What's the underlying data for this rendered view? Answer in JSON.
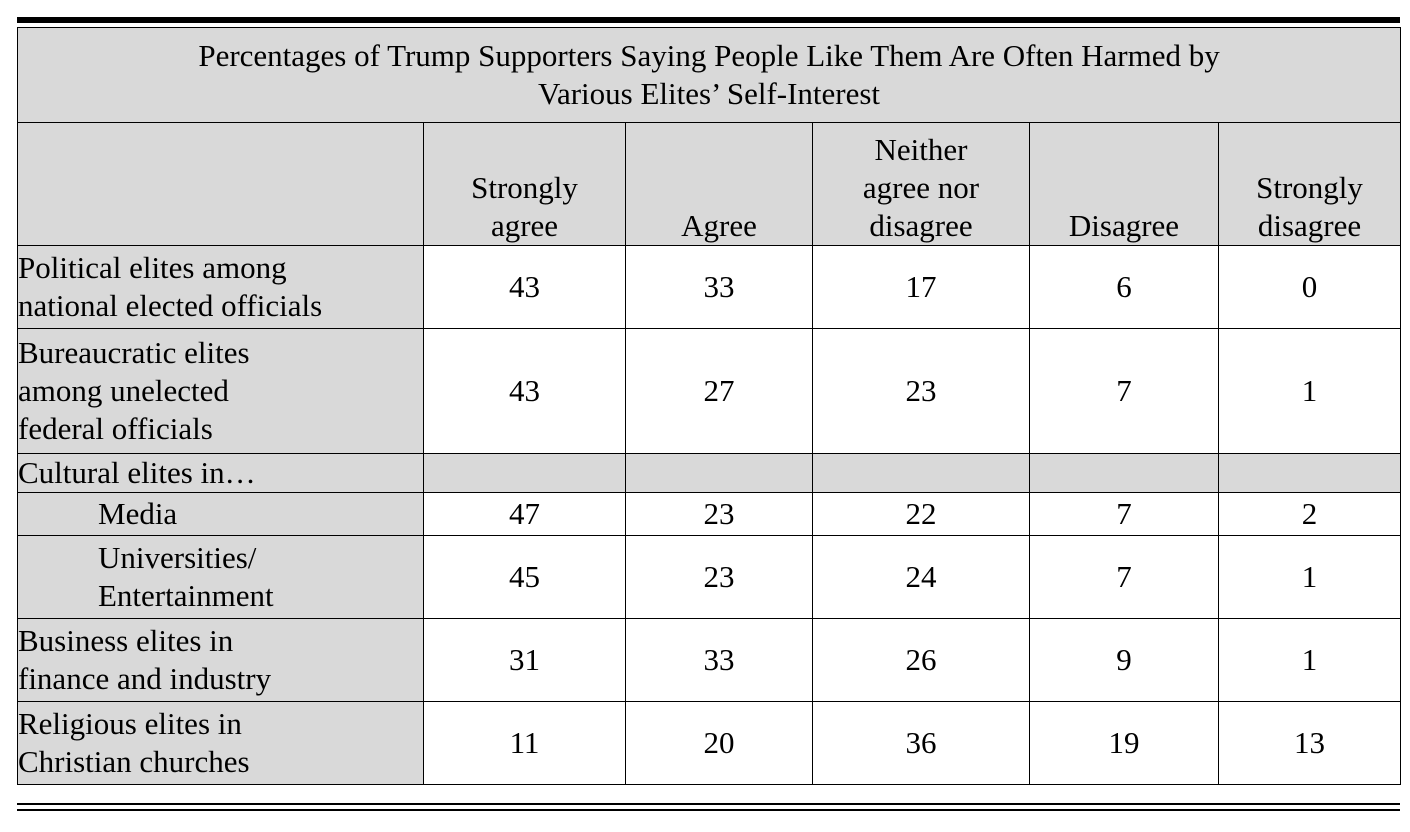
{
  "table": {
    "title_line1": "Percentages of Trump Supporters Saying People Like Them Are Often Harmed by",
    "title_line2": "Various Elites’ Self-Interest",
    "columns": [
      {
        "line1": "Strongly",
        "line2": "agree"
      },
      {
        "line1": "",
        "line2": "Agree"
      },
      {
        "line0": "Neither",
        "line1": "agree nor",
        "line2": "disagree"
      },
      {
        "line1": "",
        "line2": "Disagree"
      },
      {
        "line1": "Strongly",
        "line2": "disagree"
      }
    ],
    "rows": [
      {
        "label": [
          "Political elites among",
          "national elected officials"
        ],
        "values": [
          "43",
          "33",
          "17",
          "6",
          "0"
        ]
      },
      {
        "label": [
          "Bureaucratic elites",
          "among unelected",
          "federal officials"
        ],
        "values": [
          "43",
          "27",
          "23",
          "7",
          "1"
        ]
      },
      {
        "label": [
          "Cultural elites in…"
        ],
        "values": []
      },
      {
        "label": [
          "Media"
        ],
        "values": [
          "47",
          "23",
          "22",
          "7",
          "2"
        ]
      },
      {
        "label": [
          "Universities/",
          "Entertainment"
        ],
        "values": [
          "45",
          "23",
          "24",
          "7",
          "1"
        ]
      },
      {
        "label": [
          "Business elites in",
          "finance and industry"
        ],
        "values": [
          "31",
          "33",
          "26",
          "9",
          "1"
        ]
      },
      {
        "label": [
          "Religious elites in",
          "Christian churches"
        ],
        "values": [
          "11",
          "20",
          "36",
          "19",
          "13"
        ]
      }
    ]
  }
}
